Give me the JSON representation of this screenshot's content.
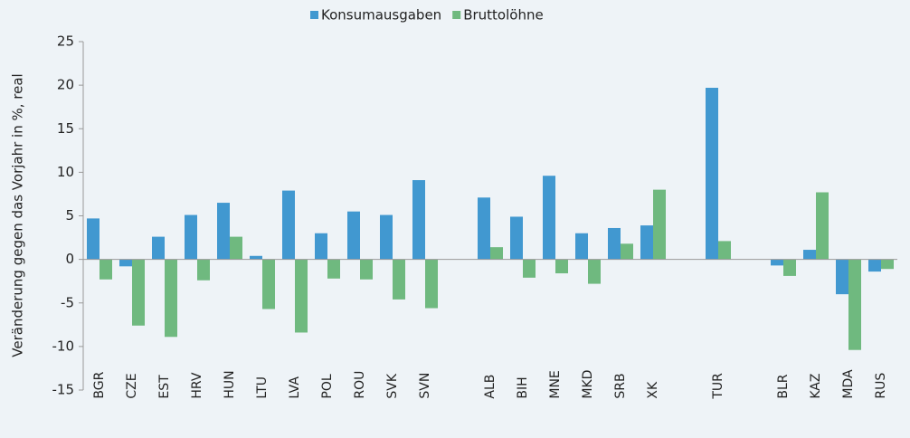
{
  "chart_data": {
    "type": "bar",
    "y_label": "Veränderung gegen das Vorjahr in %, real",
    "categories": [
      "BGR",
      "CZE",
      "EST",
      "HRV",
      "HUN",
      "LTU",
      "LVA",
      "POL",
      "ROU",
      "SVK",
      "SVN",
      null,
      "ALB",
      "BIH",
      "MNE",
      "MKD",
      "SRB",
      "XK",
      null,
      "TUR",
      null,
      "BLR",
      "KAZ",
      "MDA",
      "RUS"
    ],
    "series": [
      {
        "name": "Konsumausgaben",
        "color": "#4198d0",
        "values": [
          4.7,
          -0.8,
          2.6,
          5.1,
          6.5,
          0.4,
          7.9,
          3.0,
          5.5,
          5.1,
          9.1,
          null,
          7.1,
          4.9,
          9.6,
          3.0,
          3.6,
          3.9,
          null,
          19.7,
          null,
          -0.7,
          1.1,
          -4.0,
          -1.4
        ]
      },
      {
        "name": "Bruttolöhne",
        "color": "#6fb97f",
        "values": [
          -2.3,
          -7.6,
          -8.9,
          -2.4,
          2.6,
          -5.7,
          -8.4,
          -2.2,
          -2.3,
          -4.6,
          -5.6,
          null,
          1.4,
          -2.1,
          -1.6,
          -2.8,
          1.8,
          8.0,
          null,
          2.1,
          null,
          -1.9,
          7.7,
          -10.4,
          -1.1
        ]
      }
    ],
    "ylim": [
      -15,
      25
    ],
    "yticks": [
      -15,
      -10,
      -5,
      0,
      5,
      10,
      15,
      20,
      25
    ],
    "legend": "top",
    "grid": false
  }
}
